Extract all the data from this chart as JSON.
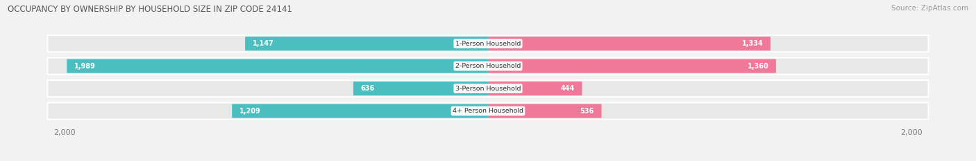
{
  "title": "OCCUPANCY BY OWNERSHIP BY HOUSEHOLD SIZE IN ZIP CODE 24141",
  "source": "Source: ZipAtlas.com",
  "categories": [
    "1-Person Household",
    "2-Person Household",
    "3-Person Household",
    "4+ Person Household"
  ],
  "owner_values": [
    1147,
    1989,
    636,
    1209
  ],
  "renter_values": [
    1334,
    1360,
    444,
    536
  ],
  "owner_color": "#4bbfbf",
  "renter_color": "#f07898",
  "owner_color_light": "#a8dede",
  "renter_color_light": "#f8b8cc",
  "axis_max": 2000,
  "bg_color": "#f2f2f2",
  "row_bg_color": "#e8e8e8",
  "title_fontsize": 8.5,
  "source_fontsize": 7.5,
  "bar_height": 0.62,
  "label_inside_threshold": 300
}
